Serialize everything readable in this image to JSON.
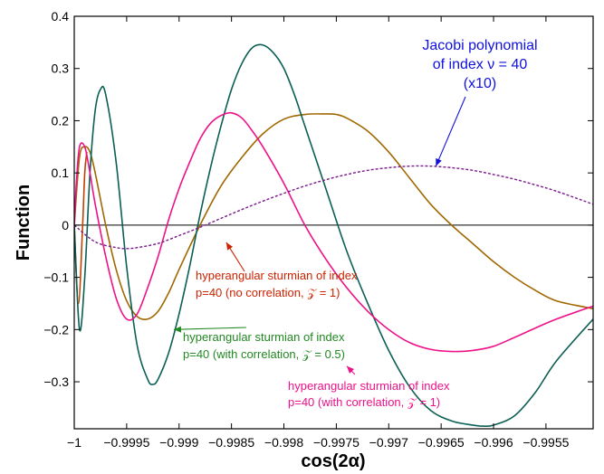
{
  "chart_data": {
    "type": "line",
    "title": "",
    "xlabel": "cos(2α)",
    "ylabel": "Function",
    "xlim": [
      -1.0,
      -0.99505
    ],
    "ylim": [
      -0.39,
      0.4
    ],
    "grid": false,
    "x_ticks": [
      {
        "value": -1.0,
        "label": "−1"
      },
      {
        "value": -0.9995,
        "label": "−0.9995"
      },
      {
        "value": -0.999,
        "label": "−0.999"
      },
      {
        "value": -0.9985,
        "label": "−0.9985"
      },
      {
        "value": -0.998,
        "label": "−0.998"
      },
      {
        "value": -0.9975,
        "label": "−0.9975"
      },
      {
        "value": -0.997,
        "label": "−0.997"
      },
      {
        "value": -0.9965,
        "label": "−0.9965"
      },
      {
        "value": -0.996,
        "label": "−0.996"
      },
      {
        "value": -0.9955,
        "label": "−0.9955"
      }
    ],
    "y_ticks": [
      {
        "value": 0.4,
        "label": "0.4"
      },
      {
        "value": 0.3,
        "label": "0.3"
      },
      {
        "value": 0.2,
        "label": "0.2"
      },
      {
        "value": 0.1,
        "label": "0.1"
      },
      {
        "value": 0.0,
        "label": "0"
      },
      {
        "value": -0.1,
        "label": "−0.1"
      },
      {
        "value": -0.2,
        "label": "−0.2"
      },
      {
        "value": -0.3,
        "label": "−0.3"
      }
    ],
    "series": [
      {
        "color": "#c04000",
        "style": "solid",
        "x": [
          -1.0,
          -0.99996,
          -0.99992,
          -0.9999,
          -0.99988
        ],
        "y": [
          0.0,
          -0.15,
          0.0,
          0.1,
          0.14
        ]
      },
      {
        "color": "#a06800",
        "style": "solid",
        "x": [
          -1.0,
          -0.99995,
          -0.9999,
          -0.99985,
          -0.9998,
          -0.9997,
          -0.9996,
          -0.9995,
          -0.9994,
          -0.9993,
          -0.9992,
          -0.9991,
          -0.999,
          -0.9988,
          -0.9986,
          -0.9984,
          -0.9982,
          -0.998,
          -0.9978,
          -0.9976,
          -0.9975,
          -0.9974,
          -0.9972,
          -0.997,
          -0.9968,
          -0.9966,
          -0.9964,
          -0.9962,
          -0.996,
          -0.9958,
          -0.9956,
          -0.9954,
          -0.99505
        ],
        "y": [
          0.0,
          0.13,
          0.15,
          0.14,
          0.1,
          0.0,
          -0.085,
          -0.145,
          -0.175,
          -0.18,
          -0.165,
          -0.13,
          -0.085,
          0.0,
          0.075,
          0.13,
          0.175,
          0.203,
          0.212,
          0.213,
          0.212,
          0.205,
          0.18,
          0.14,
          0.09,
          0.04,
          0.0,
          -0.035,
          -0.07,
          -0.1,
          -0.125,
          -0.145,
          -0.16
        ]
      },
      {
        "color": "#0b5f55",
        "style": "solid",
        "x": [
          -1.0,
          -0.99995,
          -0.9999,
          -0.99985,
          -0.9998,
          -0.99975,
          -0.9997,
          -0.9996,
          -0.9995,
          -0.9994,
          -0.9993,
          -0.99925,
          -0.9992,
          -0.9991,
          -0.999,
          -0.9989,
          -0.9988,
          -0.9987,
          -0.9986,
          -0.9985,
          -0.9984,
          -0.9983,
          -0.9982,
          -0.9981,
          -0.998,
          -0.9979,
          -0.9978,
          -0.9976,
          -0.9974,
          -0.9972,
          -0.997,
          -0.9968,
          -0.9966,
          -0.9964,
          -0.9962,
          -0.9961,
          -0.996,
          -0.9958,
          -0.9956,
          -0.9954,
          -0.99505
        ],
        "y": [
          0.0,
          -0.2,
          -0.1,
          0.1,
          0.22,
          0.26,
          0.25,
          0.12,
          -0.08,
          -0.23,
          -0.295,
          -0.305,
          -0.295,
          -0.245,
          -0.17,
          -0.08,
          0.02,
          0.11,
          0.19,
          0.26,
          0.31,
          0.34,
          0.345,
          0.33,
          0.3,
          0.25,
          0.19,
          0.07,
          -0.05,
          -0.15,
          -0.24,
          -0.31,
          -0.355,
          -0.375,
          -0.383,
          -0.385,
          -0.383,
          -0.365,
          -0.32,
          -0.26,
          -0.18
        ]
      },
      {
        "color": "#ee1188",
        "style": "solid",
        "x": [
          -1.0,
          -0.99998,
          -0.99995,
          -0.9999,
          -0.99985,
          -0.9998,
          -0.9997,
          -0.9996,
          -0.9995,
          -0.9994,
          -0.9993,
          -0.9992,
          -0.9991,
          -0.999,
          -0.9989,
          -0.9988,
          -0.9987,
          -0.9986,
          -0.9985,
          -0.9984,
          -0.9983,
          -0.9982,
          -0.998,
          -0.9978,
          -0.9976,
          -0.9974,
          -0.9972,
          -0.997,
          -0.9968,
          -0.9966,
          -0.9964,
          -0.9962,
          -0.996,
          -0.9958,
          -0.9956,
          -0.9954,
          -0.99505
        ],
        "y": [
          0.0,
          0.08,
          0.15,
          0.15,
          0.1,
          0.04,
          -0.06,
          -0.14,
          -0.18,
          -0.17,
          -0.12,
          -0.06,
          0.01,
          0.07,
          0.12,
          0.165,
          0.195,
          0.21,
          0.215,
          0.205,
          0.18,
          0.15,
          0.08,
          0.0,
          -0.065,
          -0.12,
          -0.165,
          -0.2,
          -0.225,
          -0.238,
          -0.242,
          -0.24,
          -0.232,
          -0.215,
          -0.197,
          -0.18,
          -0.155
        ]
      },
      {
        "color": "#7a1a8c",
        "style": "dashed",
        "x": [
          -1.0,
          -0.9998,
          -0.9996,
          -0.9995,
          -0.9994,
          -0.9992,
          -0.999,
          -0.9988,
          -0.9986,
          -0.9984,
          -0.9982,
          -0.998,
          -0.9978,
          -0.9976,
          -0.9974,
          -0.9972,
          -0.997,
          -0.9968,
          -0.9966,
          -0.9964,
          -0.9962,
          -0.996,
          -0.9958,
          -0.9956,
          -0.9954,
          -0.99505
        ],
        "y": [
          0.0,
          -0.032,
          -0.043,
          -0.045,
          -0.043,
          -0.035,
          -0.02,
          -0.004,
          0.013,
          0.03,
          0.046,
          0.061,
          0.075,
          0.087,
          0.097,
          0.105,
          0.11,
          0.113,
          0.113,
          0.11,
          0.105,
          0.097,
          0.088,
          0.077,
          0.065,
          0.04
        ]
      }
    ],
    "reference_line": {
      "y": 0.0,
      "color": "#000000"
    },
    "annotations": [
      {
        "lines": [
          "Jacobi polynomial",
          "of index ν = 40",
          "(x10)"
        ],
        "color": "#1010dd",
        "arrow_to": {
          "x": -0.99655,
          "y": 0.113
        }
      },
      {
        "lines": [
          "hyperangular sturmian of index",
          "p=40  (no correlation, 𝒵 = 1)"
        ],
        "color": "#cc2200",
        "arrow_to": {
          "x": -0.99855,
          "y": -0.033
        }
      },
      {
        "lines": [
          "hyperangular sturmian of index",
          "p=40  (with correlation, 𝒵 = 0.5)"
        ],
        "color": "#228822",
        "arrow_to": {
          "x": -0.99905,
          "y": -0.2
        }
      },
      {
        "lines": [
          "hyperangular sturmian of index",
          "p=40  (with correlation, 𝒵 = 1)"
        ],
        "color": "#ee1188",
        "arrow_to": {
          "x": -0.9974,
          "y": -0.27
        }
      }
    ]
  }
}
